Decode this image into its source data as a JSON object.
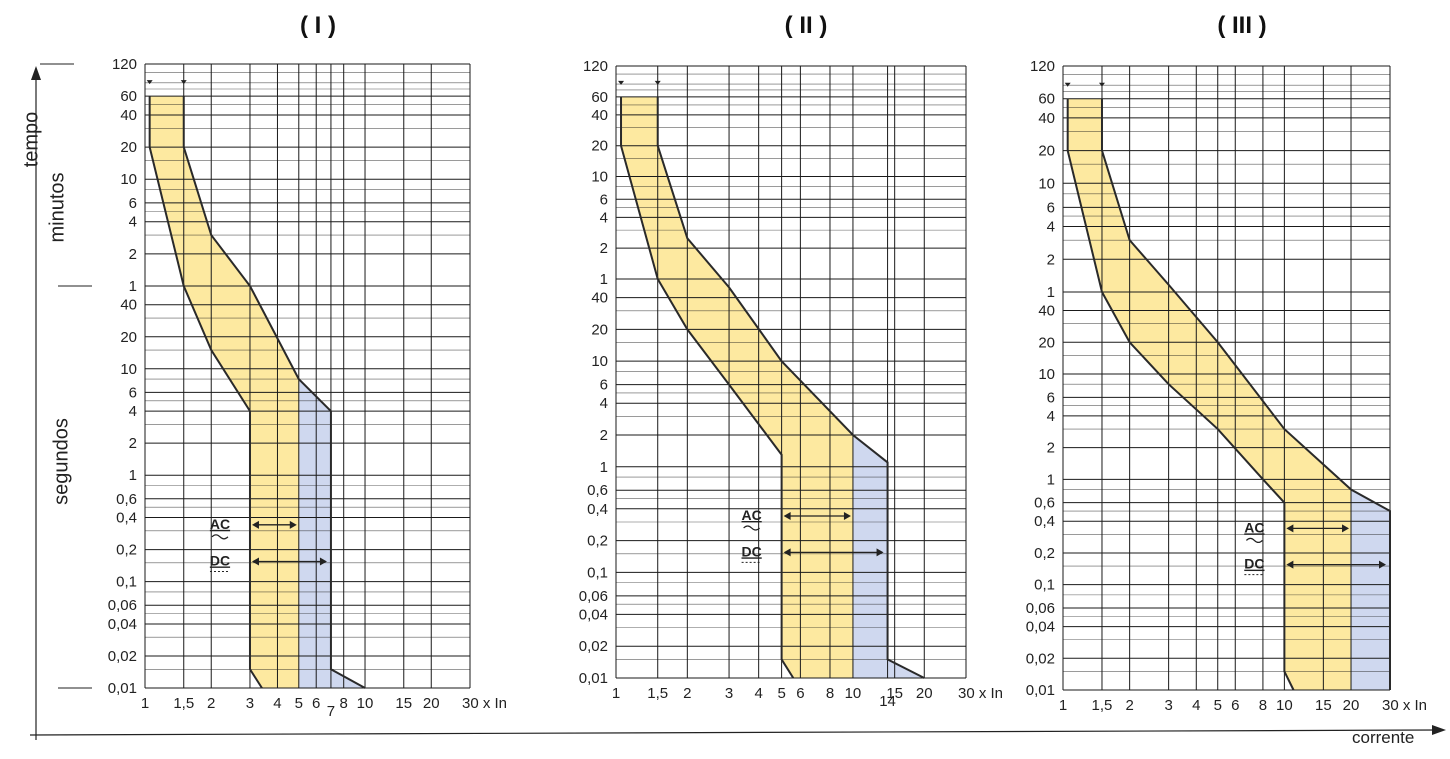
{
  "colors": {
    "yellow_band": "#fde9a0",
    "blue_band": "#cfd8ef",
    "grid": "#1a1a1a",
    "curve": "#2a2a2a",
    "text": "#222222"
  },
  "axis_labels": {
    "time": "tempo",
    "minutes": "minutos",
    "seconds": "segundos",
    "current": "corrente"
  },
  "band_labels": {
    "ac": "AC",
    "dc": "DC"
  },
  "chart_data": [
    {
      "type": "area",
      "title": "( I )",
      "y_scale": "log",
      "time_ticks_minutes": [
        "120",
        "60",
        "40",
        "20",
        "10",
        "6",
        "4",
        "2",
        "1"
      ],
      "time_ticks_seconds": [
        "40",
        "20",
        "10",
        "6",
        "4",
        "2",
        "1",
        "0,6",
        "0,4",
        "0,2",
        "0,1",
        "0,06",
        "0,04",
        "0,02",
        "0,01"
      ],
      "x_ticks": [
        "1",
        "1,5",
        "2",
        "3",
        "4",
        "5",
        "6",
        "7",
        "8",
        "10",
        "15",
        "20",
        "30 x In"
      ],
      "x_tick_values": [
        1,
        1.5,
        2,
        3,
        4,
        5,
        6,
        7,
        8,
        10,
        15,
        20,
        30
      ],
      "upper_curve": [
        [
          1.5,
          3600
        ],
        [
          1.5,
          1200
        ],
        [
          2,
          180
        ],
        [
          3,
          60
        ],
        [
          5,
          8
        ],
        [
          7,
          4
        ],
        [
          7,
          0.015
        ],
        [
          10,
          0.01
        ]
      ],
      "lower_curve": [
        [
          1.05,
          3600
        ],
        [
          1.05,
          1200
        ],
        [
          1.5,
          60
        ],
        [
          2,
          15
        ],
        [
          3,
          4
        ],
        [
          3,
          0.015
        ],
        [
          3.4,
          0.01
        ]
      ],
      "ac_region_end": 5,
      "dc_region_end": 7
    },
    {
      "type": "area",
      "title": "( II )",
      "y_scale": "log",
      "time_ticks_minutes": [
        "120",
        "60",
        "40",
        "20",
        "10",
        "6",
        "4",
        "2",
        "1"
      ],
      "time_ticks_seconds": [
        "40",
        "20",
        "10",
        "6",
        "4",
        "2",
        "1",
        "0,6",
        "0,4",
        "0,2",
        "0,1",
        "0,06",
        "0,04",
        "0,02",
        "0,01"
      ],
      "x_ticks": [
        "1",
        "1,5",
        "2",
        "3",
        "4",
        "5",
        "6",
        "8",
        "10",
        "14",
        "15",
        "20",
        "30 x In"
      ],
      "x_tick_values": [
        1,
        1.5,
        2,
        3,
        4,
        5,
        6,
        8,
        10,
        14,
        15,
        20,
        30
      ],
      "upper_curve": [
        [
          1.5,
          3600
        ],
        [
          1.5,
          1200
        ],
        [
          2,
          150
        ],
        [
          3,
          50
        ],
        [
          5,
          10
        ],
        [
          10,
          2
        ],
        [
          14,
          1.1
        ],
        [
          14,
          0.015
        ],
        [
          20,
          0.01
        ]
      ],
      "lower_curve": [
        [
          1.05,
          3600
        ],
        [
          1.05,
          1200
        ],
        [
          1.5,
          60
        ],
        [
          2,
          20
        ],
        [
          3,
          6
        ],
        [
          5,
          1.3
        ],
        [
          5,
          0.015
        ],
        [
          5.6,
          0.01
        ]
      ],
      "ac_region_end": 10,
      "dc_region_end": 14
    },
    {
      "type": "area",
      "title": "( III )",
      "y_scale": "log",
      "time_ticks_minutes": [
        "120",
        "60",
        "40",
        "20",
        "10",
        "6",
        "4",
        "2",
        "1"
      ],
      "time_ticks_seconds": [
        "40",
        "20",
        "10",
        "6",
        "4",
        "2",
        "1",
        "0,6",
        "0,4",
        "0,2",
        "0,1",
        "0,06",
        "0,04",
        "0,02",
        "0,01"
      ],
      "x_ticks": [
        "1",
        "1,5",
        "2",
        "3",
        "4",
        "5",
        "6",
        "8",
        "10",
        "15",
        "20",
        "30 x In"
      ],
      "x_tick_values": [
        1,
        1.5,
        2,
        3,
        4,
        5,
        6,
        8,
        10,
        15,
        20,
        30
      ],
      "upper_curve": [
        [
          1.5,
          3600
        ],
        [
          1.5,
          1200
        ],
        [
          2,
          180
        ],
        [
          3,
          70
        ],
        [
          5,
          20
        ],
        [
          10,
          3
        ],
        [
          20,
          0.8
        ],
        [
          30,
          0.5
        ],
        [
          30,
          0.01
        ]
      ],
      "lower_curve": [
        [
          1.05,
          3600
        ],
        [
          1.05,
          1200
        ],
        [
          1.5,
          60
        ],
        [
          2,
          20
        ],
        [
          3,
          8
        ],
        [
          5,
          3
        ],
        [
          8,
          1
        ],
        [
          10,
          0.6
        ],
        [
          10,
          0.015
        ],
        [
          11,
          0.01
        ]
      ],
      "ac_region_end": 20,
      "dc_region_end": 30
    }
  ]
}
